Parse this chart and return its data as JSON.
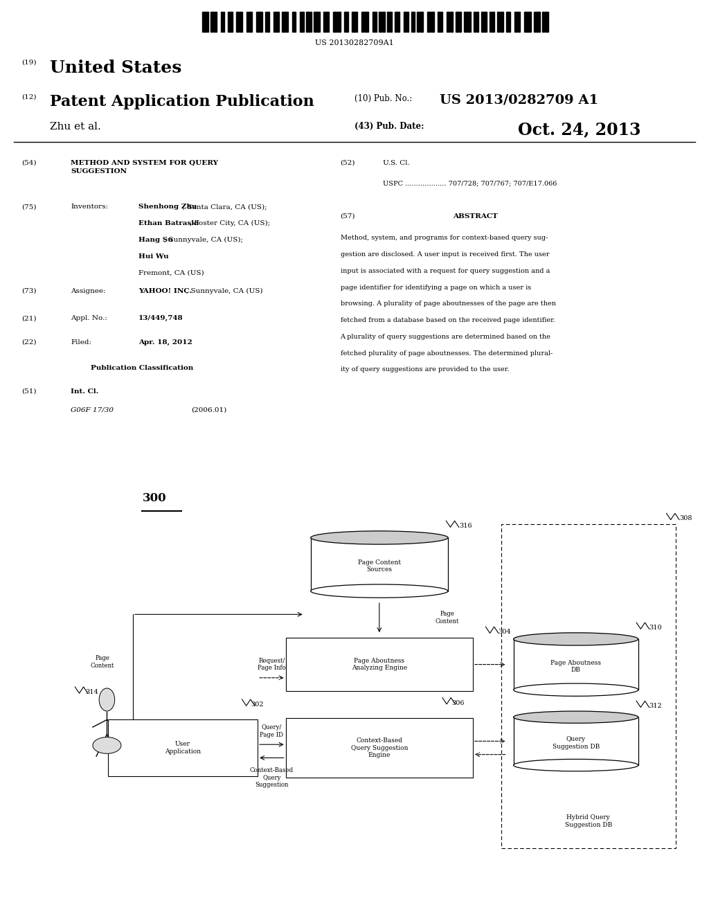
{
  "background_color": "#ffffff",
  "barcode_text": "US 20130282709A1",
  "patent_number": "US 2013/0282709 A1",
  "pub_date": "Oct. 24, 2013",
  "assignee": "YAHOO! INC., Sunnyvale, CA (US)",
  "appl_no": "13/449,748",
  "filed": "Apr. 18, 2012",
  "int_cl": "G06F 17/30",
  "int_cl_date": "(2006.01)",
  "uspc": "707/728; 707/767; 707/E17.066",
  "abstract": "Method, system, and programs for context-based query suggestion are disclosed. A user input is received first. The user input is associated with a request for query suggestion and a page identifier for identifying a page on which a user is browsing. A plurality of page aboutnesses of the page are then fetched from a database based on the received page identifier. A plurality of query suggestions are determined based on the fetched plurality of page aboutnesses. The determined plurality of query suggestions are provided to the user."
}
